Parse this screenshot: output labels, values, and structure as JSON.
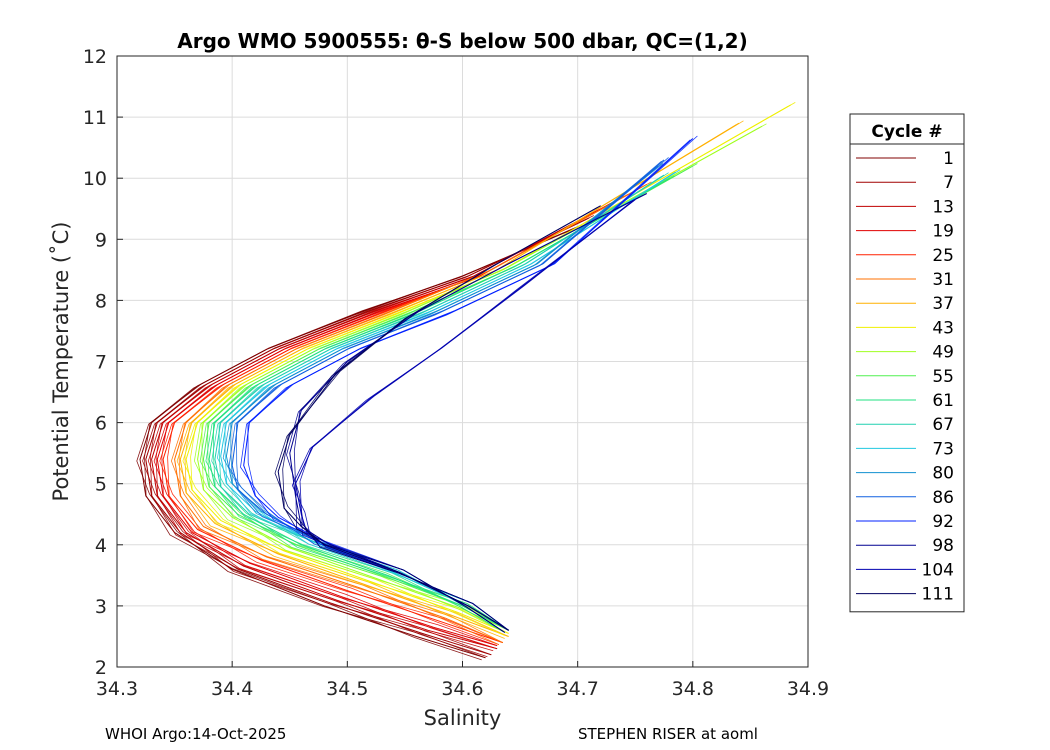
{
  "chart_data": {
    "type": "line",
    "title": "Argo WMO 5900555: θ-S below 500 dbar,  QC=(1,2)",
    "xlabel": "Salinity",
    "ylabel": "Potential Temperature (˚C)",
    "xlim": [
      34.3,
      34.9
    ],
    "ylim": [
      2,
      12
    ],
    "xticks": [
      "34.3",
      "34.4",
      "34.5",
      "34.6",
      "34.7",
      "34.8",
      "34.9"
    ],
    "yticks": [
      "2",
      "3",
      "4",
      "5",
      "6",
      "7",
      "8",
      "9",
      "10",
      "11",
      "12"
    ],
    "grid": true,
    "legend": {
      "title": "Cycle #",
      "placement": "right, outside plot",
      "entries": [
        "1",
        "7",
        "13",
        "19",
        "25",
        "31",
        "37",
        "43",
        "49",
        "55",
        "61",
        "67",
        "73",
        "80",
        "86",
        "92",
        "98",
        "104",
        "111"
      ]
    },
    "series": [
      {
        "name": "1",
        "color": "#800000",
        "points": [
          [
            34.62,
            2.15
          ],
          [
            34.56,
            2.5
          ],
          [
            34.48,
            3.0
          ],
          [
            34.4,
            3.6
          ],
          [
            34.35,
            4.2
          ],
          [
            34.325,
            4.8
          ],
          [
            34.32,
            5.4
          ],
          [
            34.33,
            6.0
          ],
          [
            34.37,
            6.6
          ],
          [
            34.43,
            7.2
          ],
          [
            34.51,
            7.8
          ],
          [
            34.6,
            8.4
          ],
          [
            34.7,
            9.2
          ]
        ]
      },
      {
        "name": "7",
        "color": "#a00000",
        "points": [
          [
            34.625,
            2.2
          ],
          [
            34.565,
            2.55
          ],
          [
            34.485,
            3.05
          ],
          [
            34.405,
            3.6
          ],
          [
            34.355,
            4.2
          ],
          [
            34.33,
            4.8
          ],
          [
            34.325,
            5.4
          ],
          [
            34.335,
            6.0
          ],
          [
            34.375,
            6.6
          ],
          [
            34.435,
            7.2
          ],
          [
            34.515,
            7.8
          ],
          [
            34.605,
            8.4
          ],
          [
            34.71,
            9.35
          ]
        ]
      },
      {
        "name": "13",
        "color": "#c00000",
        "points": [
          [
            34.63,
            2.3
          ],
          [
            34.57,
            2.6
          ],
          [
            34.49,
            3.1
          ],
          [
            34.41,
            3.65
          ],
          [
            34.36,
            4.2
          ],
          [
            34.335,
            4.8
          ],
          [
            34.33,
            5.4
          ],
          [
            34.34,
            6.0
          ],
          [
            34.38,
            6.6
          ],
          [
            34.44,
            7.2
          ],
          [
            34.52,
            7.8
          ],
          [
            34.61,
            8.4
          ],
          [
            34.72,
            9.5
          ]
        ]
      },
      {
        "name": "19",
        "color": "#e00000",
        "points": [
          [
            34.63,
            2.35
          ],
          [
            34.575,
            2.65
          ],
          [
            34.495,
            3.15
          ],
          [
            34.415,
            3.7
          ],
          [
            34.365,
            4.2
          ],
          [
            34.34,
            4.8
          ],
          [
            34.335,
            5.4
          ],
          [
            34.345,
            6.0
          ],
          [
            34.385,
            6.6
          ],
          [
            34.445,
            7.2
          ],
          [
            34.525,
            7.8
          ],
          [
            34.615,
            8.4
          ],
          [
            34.73,
            9.6
          ]
        ]
      },
      {
        "name": "25",
        "color": "#ff2000",
        "points": [
          [
            34.635,
            2.4
          ],
          [
            34.58,
            2.75
          ],
          [
            34.5,
            3.25
          ],
          [
            34.425,
            3.75
          ],
          [
            34.37,
            4.25
          ],
          [
            34.345,
            4.8
          ],
          [
            34.34,
            5.4
          ],
          [
            34.35,
            6.0
          ],
          [
            34.39,
            6.6
          ],
          [
            34.45,
            7.2
          ],
          [
            34.53,
            7.8
          ],
          [
            34.62,
            8.45
          ],
          [
            34.74,
            9.7
          ]
        ]
      },
      {
        "name": "31",
        "color": "#ff7000",
        "points": [
          [
            34.635,
            2.4
          ],
          [
            34.585,
            2.8
          ],
          [
            34.51,
            3.3
          ],
          [
            34.43,
            3.8
          ],
          [
            34.375,
            4.3
          ],
          [
            34.355,
            4.8
          ],
          [
            34.35,
            5.4
          ],
          [
            34.36,
            6.0
          ],
          [
            34.395,
            6.6
          ],
          [
            34.455,
            7.2
          ],
          [
            34.535,
            7.8
          ],
          [
            34.625,
            8.5
          ],
          [
            34.76,
            9.9
          ]
        ]
      },
      {
        "name": "37",
        "color": "#ffb000",
        "points": [
          [
            34.64,
            2.5
          ],
          [
            34.59,
            2.85
          ],
          [
            34.515,
            3.35
          ],
          [
            34.44,
            3.85
          ],
          [
            34.385,
            4.35
          ],
          [
            34.36,
            4.85
          ],
          [
            34.355,
            5.4
          ],
          [
            34.365,
            6.0
          ],
          [
            34.4,
            6.6
          ],
          [
            34.46,
            7.2
          ],
          [
            34.54,
            7.8
          ],
          [
            34.63,
            8.5
          ],
          [
            34.84,
            10.9
          ]
        ]
      },
      {
        "name": "43",
        "color": "#f0f000",
        "points": [
          [
            34.64,
            2.55
          ],
          [
            34.595,
            2.9
          ],
          [
            34.52,
            3.4
          ],
          [
            34.445,
            3.9
          ],
          [
            34.39,
            4.4
          ],
          [
            34.365,
            4.9
          ],
          [
            34.36,
            5.4
          ],
          [
            34.37,
            6.0
          ],
          [
            34.405,
            6.6
          ],
          [
            34.465,
            7.2
          ],
          [
            34.545,
            7.8
          ],
          [
            34.635,
            8.5
          ],
          [
            34.885,
            11.2
          ]
        ]
      },
      {
        "name": "49",
        "color": "#a0ff20",
        "points": [
          [
            34.64,
            2.6
          ],
          [
            34.6,
            2.95
          ],
          [
            34.525,
            3.45
          ],
          [
            34.45,
            3.95
          ],
          [
            34.4,
            4.45
          ],
          [
            34.375,
            4.9
          ],
          [
            34.37,
            5.4
          ],
          [
            34.375,
            6.0
          ],
          [
            34.41,
            6.6
          ],
          [
            34.47,
            7.2
          ],
          [
            34.55,
            7.8
          ],
          [
            34.64,
            8.55
          ],
          [
            34.86,
            10.85
          ]
        ]
      },
      {
        "name": "55",
        "color": "#50f050",
        "points": [
          [
            34.64,
            2.6
          ],
          [
            34.6,
            3.0
          ],
          [
            34.53,
            3.5
          ],
          [
            34.455,
            4.0
          ],
          [
            34.405,
            4.5
          ],
          [
            34.38,
            4.95
          ],
          [
            34.375,
            5.4
          ],
          [
            34.38,
            6.0
          ],
          [
            34.415,
            6.6
          ],
          [
            34.475,
            7.2
          ],
          [
            34.555,
            7.8
          ],
          [
            34.645,
            8.55
          ],
          [
            34.8,
            10.2
          ]
        ]
      },
      {
        "name": "61",
        "color": "#20e080",
        "points": [
          [
            34.64,
            2.6
          ],
          [
            34.6,
            3.0
          ],
          [
            34.535,
            3.5
          ],
          [
            34.46,
            4.0
          ],
          [
            34.41,
            4.5
          ],
          [
            34.385,
            4.95
          ],
          [
            34.38,
            5.4
          ],
          [
            34.385,
            6.0
          ],
          [
            34.42,
            6.6
          ],
          [
            34.48,
            7.2
          ],
          [
            34.56,
            7.8
          ],
          [
            34.65,
            8.6
          ],
          [
            34.78,
            10.0
          ]
        ]
      },
      {
        "name": "67",
        "color": "#20d0b0",
        "points": [
          [
            34.64,
            2.6
          ],
          [
            34.605,
            3.0
          ],
          [
            34.54,
            3.55
          ],
          [
            34.47,
            4.05
          ],
          [
            34.415,
            4.5
          ],
          [
            34.39,
            4.95
          ],
          [
            34.385,
            5.4
          ],
          [
            34.39,
            6.0
          ],
          [
            34.425,
            6.6
          ],
          [
            34.485,
            7.2
          ],
          [
            34.565,
            7.8
          ],
          [
            34.655,
            8.6
          ],
          [
            34.775,
            10.05
          ]
        ]
      },
      {
        "name": "73",
        "color": "#20c8e0",
        "points": [
          [
            34.64,
            2.6
          ],
          [
            34.605,
            3.0
          ],
          [
            34.54,
            3.55
          ],
          [
            34.47,
            4.05
          ],
          [
            34.42,
            4.55
          ],
          [
            34.395,
            5.0
          ],
          [
            34.39,
            5.45
          ],
          [
            34.395,
            6.0
          ],
          [
            34.43,
            6.6
          ],
          [
            34.49,
            7.2
          ],
          [
            34.57,
            7.8
          ],
          [
            34.66,
            8.6
          ],
          [
            34.785,
            10.1
          ]
        ]
      },
      {
        "name": "80",
        "color": "#1090d0",
        "points": [
          [
            34.64,
            2.6
          ],
          [
            34.605,
            3.0
          ],
          [
            34.545,
            3.55
          ],
          [
            34.475,
            4.05
          ],
          [
            34.425,
            4.55
          ],
          [
            34.4,
            5.0
          ],
          [
            34.395,
            5.45
          ],
          [
            34.4,
            6.0
          ],
          [
            34.435,
            6.6
          ],
          [
            34.495,
            7.2
          ],
          [
            34.575,
            7.8
          ],
          [
            34.665,
            8.6
          ],
          [
            34.77,
            10.2
          ]
        ]
      },
      {
        "name": "86",
        "color": "#1060e0",
        "points": [
          [
            34.64,
            2.6
          ],
          [
            34.605,
            3.0
          ],
          [
            34.545,
            3.55
          ],
          [
            34.475,
            4.05
          ],
          [
            34.43,
            4.5
          ],
          [
            34.405,
            4.9
          ],
          [
            34.4,
            5.3
          ],
          [
            34.405,
            6.0
          ],
          [
            34.44,
            6.6
          ],
          [
            34.5,
            7.2
          ],
          [
            34.58,
            7.8
          ],
          [
            34.67,
            8.6
          ],
          [
            34.775,
            10.3
          ]
        ]
      },
      {
        "name": "92",
        "color": "#0020ff",
        "points": [
          [
            34.64,
            2.6
          ],
          [
            34.605,
            3.0
          ],
          [
            34.545,
            3.55
          ],
          [
            34.48,
            4.05
          ],
          [
            34.44,
            4.45
          ],
          [
            34.42,
            4.8
          ],
          [
            34.41,
            5.3
          ],
          [
            34.415,
            6.0
          ],
          [
            34.45,
            6.6
          ],
          [
            34.51,
            7.2
          ],
          [
            34.59,
            7.8
          ],
          [
            34.68,
            8.6
          ],
          [
            34.8,
            10.65
          ]
        ]
      },
      {
        "name": "98",
        "color": "#000090",
        "points": [
          [
            34.64,
            2.6
          ],
          [
            34.605,
            3.0
          ],
          [
            34.545,
            3.55
          ],
          [
            34.485,
            4.0
          ],
          [
            34.46,
            4.3
          ],
          [
            34.455,
            4.8
          ],
          [
            34.45,
            5.5
          ],
          [
            34.46,
            6.2
          ],
          [
            34.5,
            7.0
          ],
          [
            34.56,
            7.8
          ],
          [
            34.64,
            8.6
          ],
          [
            34.76,
            9.75
          ]
        ]
      },
      {
        "name": "104",
        "color": "#0000b0",
        "points": [
          [
            34.64,
            2.6
          ],
          [
            34.605,
            3.0
          ],
          [
            34.545,
            3.55
          ],
          [
            34.48,
            4.0
          ],
          [
            34.465,
            4.2
          ],
          [
            34.46,
            4.5
          ],
          [
            34.455,
            5.0
          ],
          [
            34.47,
            5.6
          ],
          [
            34.52,
            6.4
          ],
          [
            34.58,
            7.2
          ],
          [
            34.65,
            8.2
          ],
          [
            34.75,
            9.65
          ]
        ]
      },
      {
        "name": "111",
        "color": "#000060",
        "points": [
          [
            34.64,
            2.6
          ],
          [
            34.605,
            3.0
          ],
          [
            34.545,
            3.55
          ],
          [
            34.48,
            4.0
          ],
          [
            34.46,
            4.3
          ],
          [
            34.445,
            4.6
          ],
          [
            34.44,
            5.2
          ],
          [
            34.45,
            5.8
          ],
          [
            34.49,
            6.8
          ],
          [
            34.55,
            7.7
          ],
          [
            34.63,
            8.6
          ],
          [
            34.72,
            9.55
          ]
        ]
      }
    ]
  },
  "footer": {
    "left": "WHOI Argo:14-Oct-2025",
    "right": "STEPHEN RISER at aoml"
  }
}
